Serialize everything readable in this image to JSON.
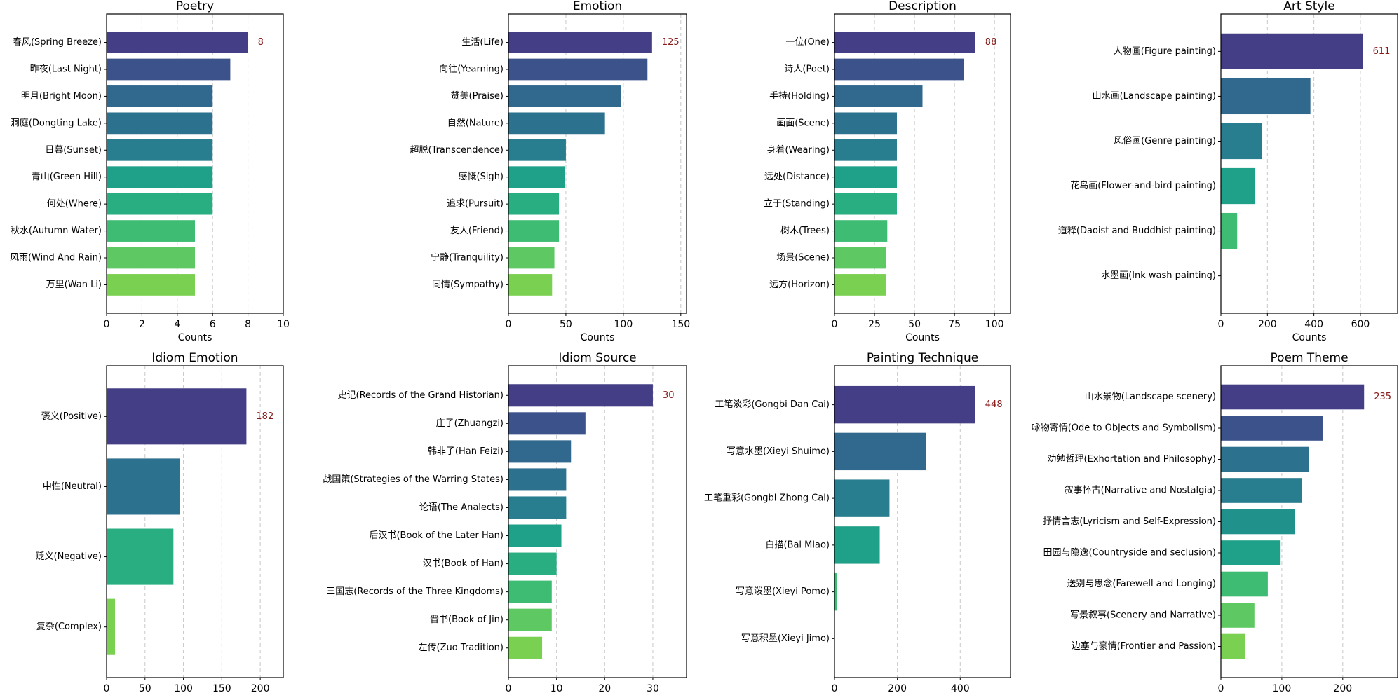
{
  "chart_data": [
    {
      "type": "bar",
      "orientation": "horizontal",
      "title": "Poetry",
      "xlabel": "Counts",
      "categories": [
        "春风(Spring Breeze)",
        "昨夜(Last Night)",
        "明月(Bright Moon)",
        "洞庭(Dongting Lake)",
        "日暮(Sunset)",
        "青山(Green Hill)",
        "何处(Where)",
        "秋水(Autumn Water)",
        "风雨(Wind And Rain)",
        "万里(Wan Li)"
      ],
      "values": [
        8,
        7,
        6,
        6,
        6,
        6,
        6,
        5,
        5,
        5
      ],
      "xlim": [
        0,
        10
      ],
      "xticks": [
        0,
        2,
        4,
        6,
        8,
        10
      ],
      "value_label": "8",
      "grid": "x-dashed",
      "colormap": "viridis"
    },
    {
      "type": "bar",
      "orientation": "horizontal",
      "title": "Emotion",
      "xlabel": "Counts",
      "categories": [
        "生活(Life)",
        "向往(Yearning)",
        "赞美(Praise)",
        "自然(Nature)",
        "超脱(Transcendence)",
        "感慨(Sigh)",
        "追求(Pursuit)",
        "友人(Friend)",
        "宁静(Tranquility)",
        "同情(Sympathy)"
      ],
      "values": [
        125,
        121,
        98,
        84,
        50,
        49,
        44,
        44,
        40,
        38
      ],
      "xlim": [
        0,
        155
      ],
      "xticks": [
        0,
        50,
        100,
        150
      ],
      "value_label": "125",
      "grid": "x-dashed",
      "colormap": "viridis"
    },
    {
      "type": "bar",
      "orientation": "horizontal",
      "title": "Description",
      "xlabel": "Counts",
      "categories": [
        "一位(One)",
        "诗人(Poet)",
        "手持(Holding)",
        "画面(Scene)",
        "身着(Wearing)",
        "远处(Distance)",
        "立于(Standing)",
        "树木(Trees)",
        "场景(Scene)",
        "远方(Horizon)"
      ],
      "values": [
        88,
        81,
        55,
        39,
        39,
        39,
        39,
        33,
        32,
        32
      ],
      "xlim": [
        0,
        110
      ],
      "xticks": [
        0,
        25,
        50,
        75,
        100
      ],
      "value_label": "88",
      "grid": "x-dashed",
      "colormap": "viridis"
    },
    {
      "type": "bar",
      "orientation": "horizontal",
      "title": "Art Style",
      "xlabel": "Counts",
      "categories": [
        "人物画(Figure painting)",
        "山水画(Landscape painting)",
        "风俗画(Genre painting)",
        "花鸟画(Flower-and-bird painting)",
        "道释(Daoist and Buddhist painting)",
        "水墨画(Ink wash painting)"
      ],
      "values": [
        611,
        385,
        177,
        148,
        70,
        0
      ],
      "xlim": [
        0,
        760
      ],
      "xticks": [
        0,
        200,
        400,
        600
      ],
      "value_label": "611",
      "grid": "x-dashed",
      "colormap": "viridis"
    },
    {
      "type": "bar",
      "orientation": "horizontal",
      "title": "Idiom Emotion",
      "xlabel": "Counts",
      "categories": [
        "褒义(Positive)",
        "中性(Neutral)",
        "贬义(Negative)",
        "复杂(Complex)"
      ],
      "values": [
        182,
        95,
        87,
        11
      ],
      "xlim": [
        0,
        230
      ],
      "xticks": [
        0,
        50,
        100,
        150,
        200
      ],
      "value_label": "182",
      "grid": "x-dashed",
      "colormap": "viridis"
    },
    {
      "type": "bar",
      "orientation": "horizontal",
      "title": "Idiom Source",
      "xlabel": "Counts",
      "categories": [
        "史记(Records of the Grand Historian)",
        "庄子(Zhuangzi)",
        "韩非子(Han Feizi)",
        "战国策(Strategies of the Warring States)",
        "论语(The Analects)",
        "后汉书(Book of the Later Han)",
        "汉书(Book of Han)",
        "三国志(Records of the Three Kingdoms)",
        "晋书(Book of Jin)",
        "左传(Zuo Tradition)"
      ],
      "values": [
        30,
        16,
        13,
        12,
        12,
        11,
        10,
        9,
        9,
        7
      ],
      "xlim": [
        0,
        37
      ],
      "xticks": [
        0,
        10,
        20,
        30
      ],
      "value_label": "30",
      "grid": "x-dashed",
      "colormap": "viridis"
    },
    {
      "type": "bar",
      "orientation": "horizontal",
      "title": "Painting Technique",
      "xlabel": "Counts",
      "categories": [
        "工笔淡彩(Gongbi Dan Cai)",
        "写意水墨(Xieyi Shuimo)",
        "工笔重彩(Gongbi Zhong Cai)",
        "白描(Bai Miao)",
        "写意泼墨(Xieyi Pomo)",
        "写意积墨(Xieyi Jimo)"
      ],
      "values": [
        448,
        292,
        175,
        144,
        8,
        0
      ],
      "xlim": [
        0,
        560
      ],
      "xticks": [
        0,
        200,
        400
      ],
      "value_label": "448",
      "grid": "x-dashed",
      "colormap": "viridis"
    },
    {
      "type": "bar",
      "orientation": "horizontal",
      "title": "Poem Theme",
      "xlabel": "Counts",
      "categories": [
        "山水景物(Landscape scenery)",
        "咏物寄情(Ode to Objects and Symbolism)",
        "劝勉哲理(Exhortation and Philosophy)",
        "叙事怀古(Narrative and Nostalgia)",
        "抒情言志(Lyricism and Self-Expression)",
        "田园与隐逸(Countryside and seclusion)",
        "送别与思念(Farewell and Longing)",
        "写景叙事(Scenery and Narrative)",
        "边塞与豪情(Frontier and Passion)"
      ],
      "values": [
        235,
        167,
        145,
        133,
        122,
        98,
        77,
        55,
        40
      ],
      "xlim": [
        0,
        290
      ],
      "xticks": [
        0,
        100,
        200
      ],
      "value_label": "235",
      "grid": "x-dashed",
      "colormap": "viridis"
    }
  ]
}
